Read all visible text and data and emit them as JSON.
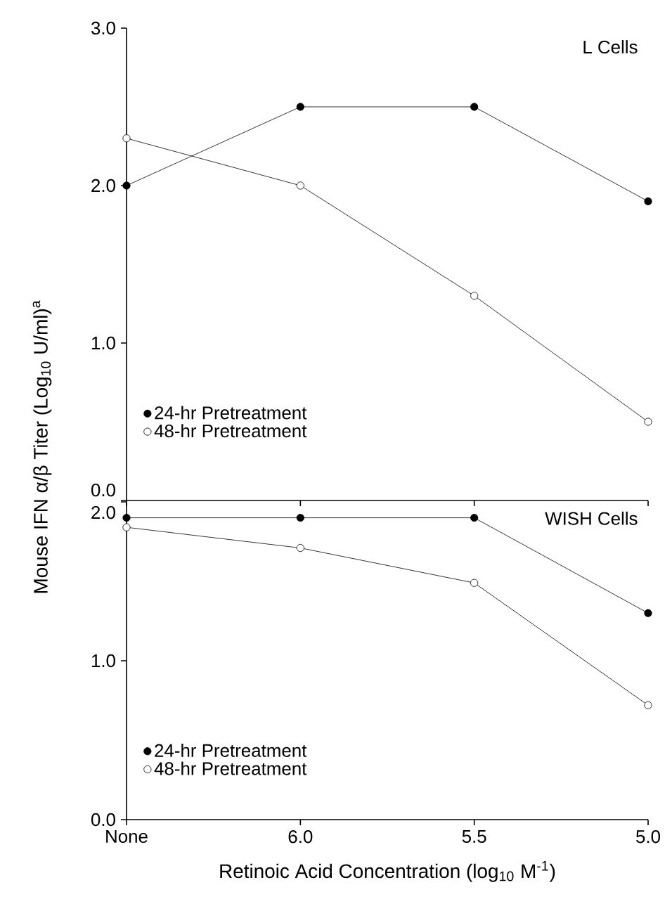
{
  "chart_data": [
    {
      "type": "line",
      "categories": [
        null,
        null,
        null,
        null
      ],
      "annotations": [
        "L Cells"
      ],
      "series": [
        {
          "name": "24-hr Pretreatment",
          "color": "#000000",
          "values": [
            2.0,
            2.5,
            2.5,
            1.9
          ]
        },
        {
          "name": "48-hr Pretreatment",
          "color": "#000000",
          "values": [
            2.3,
            2.0,
            1.3,
            0.5
          ]
        }
      ],
      "ylim": [
        0,
        3
      ],
      "yticks": [
        {
          "value": 0,
          "label": "0.0"
        },
        {
          "value": 1,
          "label": "1.0"
        },
        {
          "value": 2,
          "label": "2.0"
        },
        {
          "value": 3,
          "label": "3.0"
        }
      ],
      "tick_labels": "y",
      "legend": "bottom left",
      "marker": "circle",
      "line_style": "solid",
      "grid": false
    },
    {
      "type": "line",
      "categories": [
        "None",
        "6.0",
        "5.5",
        "5.0"
      ],
      "annotations": [
        "WISH Cells"
      ],
      "xlabel": "Retinoic Acid Concentration (log$_{10}$ M$^{-1}$)",
      "ylabel": "Mouse IFN α/β Titer (Log$_{10}$ U/ml)$^{a}$",
      "series": [
        {
          "name": "24-hr Pretreatment",
          "color": "#000000",
          "values": [
            1.9,
            1.9,
            1.9,
            1.3
          ]
        },
        {
          "name": "48-hr Pretreatment",
          "color": "#000000",
          "values": [
            1.84,
            1.71,
            1.49,
            0.72
          ]
        }
      ],
      "ylim": [
        0,
        2
      ],
      "yticks": [
        {
          "value": 0,
          "label": "0.0"
        },
        {
          "value": 1,
          "label": "1.0"
        },
        {
          "value": 2,
          "label": "2.0"
        }
      ],
      "legend": "bottom left",
      "marker": "circle",
      "line_style": "solid",
      "grid": false
    }
  ]
}
